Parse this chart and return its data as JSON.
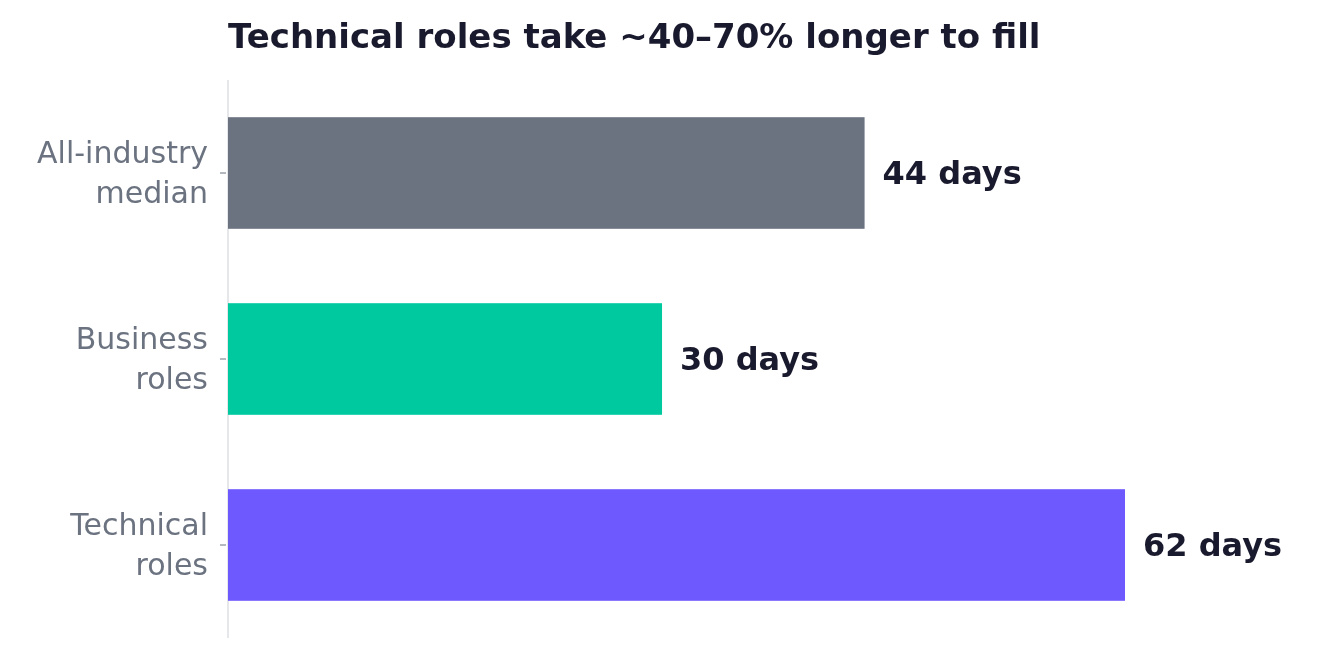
{
  "chart_data": {
    "type": "bar",
    "orientation": "horizontal",
    "title": "Technical roles take ~40–70% longer to fill",
    "categories": [
      "All-industry median",
      "Business roles",
      "Technical roles"
    ],
    "values": [
      44,
      30,
      62
    ],
    "colors": [
      "#6b7280",
      "#00c9a0",
      "#6e59ff"
    ],
    "value_labels": [
      "44 days",
      "30 days",
      "62 days"
    ]
  }
}
